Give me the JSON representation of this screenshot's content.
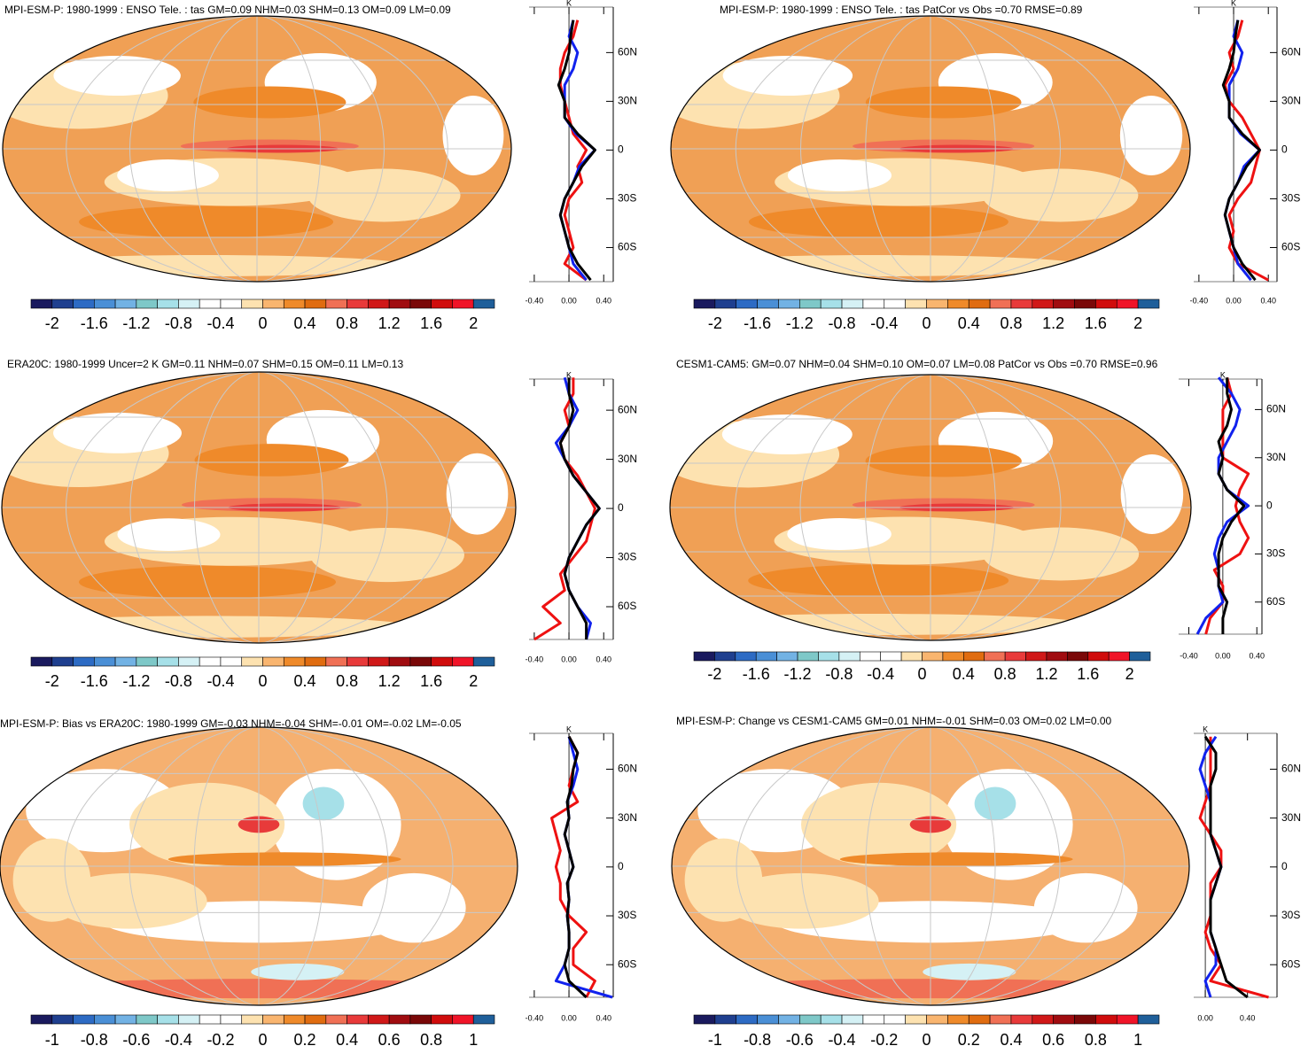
{
  "chart_data": [
    {
      "type": "map",
      "title": "MPI-ESM-P: 1980-1999 : ENSO Tele. : tas GM=0.09 NHM=0.03 SHM=0.13 OM=0.09 LM=0.09",
      "colorbar": {
        "lim": [
          -2.2,
          2.2
        ],
        "ticks": [
          -2,
          -1.6,
          -1.2,
          -0.8,
          -0.4,
          0,
          0.4,
          0.8,
          1.2,
          1.6,
          2
        ],
        "colors": [
          "#1a1a5e",
          "#1f3f8f",
          "#2d6bc4",
          "#4a8fd6",
          "#72b2e4",
          "#7ec8c8",
          "#a6e0e8",
          "#d5f1f5",
          "#ffffff",
          "#ffffff",
          "#fde2b0",
          "#f9b56f",
          "#ef8a2a",
          "#e06c10",
          "#f07055",
          "#e83a3a",
          "#d01818",
          "#a00c10",
          "#7a0808",
          "#d00c0c",
          "#f01428",
          "#1f5f9a"
        ]
      },
      "zonal_mean": {
        "type": "line",
        "x_label": "K",
        "xlim": [
          -0.46,
          0.51
        ],
        "ylim": [
          -81,
          88
        ],
        "xticks": [
          {
            "value": -0.4,
            "label": "-0.40"
          },
          {
            "value": 0,
            "label": "0.00"
          },
          {
            "value": 0.4,
            "label": "0.40"
          }
        ],
        "yticks": [
          {
            "value": 60,
            "label": "60N"
          },
          {
            "value": 30,
            "label": "30N"
          },
          0,
          {
            "value": -30,
            "label": "30S"
          },
          {
            "value": -60,
            "label": "60S"
          }
        ],
        "lat": [
          -80,
          -70,
          -60,
          -50,
          -40,
          -30,
          -20,
          -10,
          0,
          10,
          20,
          30,
          40,
          50,
          60,
          70,
          80
        ],
        "series": [
          {
            "color": "#ee1111",
            "values": [
              0.2,
              -0.05,
              0.05,
              0.0,
              -0.05,
              0.0,
              0.15,
              0.1,
              0.2,
              0.05,
              0.0,
              -0.05,
              -0.1,
              -0.1,
              -0.05,
              0.05,
              0.1
            ]
          },
          {
            "color": "#1122ee",
            "values": [
              0.2,
              0.05,
              0.0,
              -0.05,
              -0.1,
              -0.05,
              0.05,
              0.12,
              0.3,
              0.08,
              -0.05,
              -0.05,
              -0.05,
              0.05,
              0.1,
              0.0,
              0.05
            ]
          },
          {
            "color": "#000000",
            "values": [
              0.25,
              0.1,
              0.0,
              -0.05,
              -0.1,
              -0.05,
              0.05,
              0.15,
              0.3,
              0.1,
              -0.05,
              -0.05,
              -0.12,
              -0.05,
              0.0,
              0.02,
              0.05
            ]
          }
        ]
      }
    },
    {
      "type": "map",
      "title": "MPI-ESM-P: 1980-1999 : ENSO Tele. : tas PatCor vs Obs =0.70 RMSE=0.89",
      "colorbar": {
        "lim": [
          -2.2,
          2.2
        ],
        "ticks": [
          -2,
          -1.6,
          -1.2,
          -0.8,
          -0.4,
          0,
          0.4,
          0.8,
          1.2,
          1.6,
          2
        ],
        "colors": [
          "#1a1a5e",
          "#1f3f8f",
          "#2d6bc4",
          "#4a8fd6",
          "#72b2e4",
          "#7ec8c8",
          "#a6e0e8",
          "#d5f1f5",
          "#ffffff",
          "#ffffff",
          "#fde2b0",
          "#f9b56f",
          "#ef8a2a",
          "#e06c10",
          "#f07055",
          "#e83a3a",
          "#d01818",
          "#a00c10",
          "#7a0808",
          "#d00c0c",
          "#f01428",
          "#1f5f9a"
        ]
      },
      "zonal_mean": {
        "type": "line",
        "x_label": "K",
        "xlim": [
          -0.46,
          0.5
        ],
        "ylim": [
          -81,
          88
        ],
        "xticks": [
          {
            "value": -0.4,
            "label": "-0.40"
          },
          {
            "value": 0,
            "label": "0.00"
          },
          {
            "value": 0.4,
            "label": "0.40"
          }
        ],
        "yticks": [
          {
            "value": 60,
            "label": "60N"
          },
          {
            "value": 30,
            "label": "30N"
          },
          0,
          {
            "value": -30,
            "label": "30S"
          },
          {
            "value": -60,
            "label": "60S"
          }
        ],
        "lat": [
          -80,
          -70,
          -60,
          -50,
          -40,
          -30,
          -20,
          -10,
          0,
          10,
          20,
          30,
          40,
          50,
          60,
          70,
          80
        ],
        "series": [
          {
            "color": "#ee1111",
            "values": [
              0.4,
              0.05,
              -0.05,
              0.0,
              -0.05,
              0.05,
              0.2,
              0.25,
              0.3,
              0.2,
              0.1,
              -0.05,
              -0.1,
              0.0,
              -0.05,
              0.05,
              0.1
            ]
          },
          {
            "color": "#1122ee",
            "values": [
              0.2,
              0.05,
              0.0,
              -0.05,
              -0.1,
              -0.05,
              0.05,
              0.12,
              0.3,
              0.08,
              -0.05,
              -0.05,
              -0.05,
              0.05,
              0.1,
              0.0,
              0.05
            ]
          },
          {
            "color": "#000000",
            "values": [
              0.25,
              0.1,
              0.0,
              -0.05,
              -0.1,
              -0.05,
              0.05,
              0.15,
              0.3,
              0.1,
              -0.05,
              -0.05,
              -0.12,
              -0.05,
              0.0,
              0.02,
              0.05
            ]
          }
        ]
      }
    },
    {
      "type": "map",
      "title": "ERA20C: 1980-1999 Uncer=2 K GM=0.11 NHM=0.07 SHM=0.15 OM=0.11 LM=0.13",
      "colorbar": {
        "lim": [
          -2.2,
          2.2
        ],
        "ticks": [
          -2,
          -1.6,
          -1.2,
          -0.8,
          -0.4,
          0,
          0.4,
          0.8,
          1.2,
          1.6,
          2
        ],
        "colors": [
          "#1a1a5e",
          "#1f3f8f",
          "#2d6bc4",
          "#4a8fd6",
          "#72b2e4",
          "#7ec8c8",
          "#a6e0e8",
          "#d5f1f5",
          "#ffffff",
          "#ffffff",
          "#fde2b0",
          "#f9b56f",
          "#ef8a2a",
          "#e06c10",
          "#f07055",
          "#e83a3a",
          "#d01818",
          "#a00c10",
          "#7a0808",
          "#d00c0c",
          "#f01428",
          "#1f5f9a"
        ]
      },
      "zonal_mean": {
        "type": "line",
        "x_label": "K",
        "xlim": [
          -0.46,
          0.51
        ],
        "ylim": [
          -80,
          79
        ],
        "xticks": [
          {
            "value": -0.4,
            "label": "-0.40"
          },
          {
            "value": 0,
            "label": "0.00"
          },
          {
            "value": 0.4,
            "label": "0.40"
          }
        ],
        "yticks": [
          {
            "value": 60,
            "label": "60N"
          },
          {
            "value": 30,
            "label": "30N"
          },
          0,
          {
            "value": -30,
            "label": "30S"
          },
          {
            "value": -60,
            "label": "60S"
          }
        ],
        "lat": [
          -80,
          -70,
          -60,
          -50,
          -40,
          -30,
          -20,
          -10,
          0,
          10,
          20,
          30,
          40,
          50,
          60,
          70,
          80
        ],
        "series": [
          {
            "color": "#ee1111",
            "values": [
              -0.4,
              -0.1,
              -0.3,
              -0.05,
              -0.1,
              0.05,
              0.2,
              0.25,
              0.3,
              0.2,
              0.1,
              -0.05,
              -0.1,
              0.0,
              -0.05,
              0.05,
              0.05
            ]
          },
          {
            "color": "#1122ee",
            "values": [
              0.2,
              0.25,
              0.1,
              0.0,
              -0.05,
              0.0,
              0.1,
              0.2,
              0.35,
              0.2,
              0.05,
              -0.05,
              -0.15,
              0.0,
              0.1,
              0.0,
              -0.05
            ]
          },
          {
            "color": "#000000",
            "values": [
              0.2,
              0.2,
              0.1,
              0.0,
              -0.05,
              0.0,
              0.1,
              0.2,
              0.35,
              0.2,
              0.05,
              -0.05,
              -0.1,
              0.0,
              0.05,
              0.0,
              0.0
            ]
          }
        ]
      }
    },
    {
      "type": "map",
      "title": "CESM1-CAM5: GM=0.07 NHM=0.04 SHM=0.10 OM=0.07 LM=0.08 PatCor vs Obs =0.70 RMSE=0.96",
      "colorbar": {
        "lim": [
          -2.2,
          2.2
        ],
        "ticks": [
          -2,
          -1.6,
          -1.2,
          -0.8,
          -0.4,
          0,
          0.4,
          0.8,
          1.2,
          1.6,
          2
        ],
        "colors": [
          "#1a1a5e",
          "#1f3f8f",
          "#2d6bc4",
          "#4a8fd6",
          "#72b2e4",
          "#7ec8c8",
          "#a6e0e8",
          "#d5f1f5",
          "#ffffff",
          "#ffffff",
          "#fde2b0",
          "#f9b56f",
          "#ef8a2a",
          "#e06c10",
          "#f07055",
          "#e83a3a",
          "#d01818",
          "#a00c10",
          "#7a0808",
          "#d00c0c",
          "#f01428",
          "#1f5f9a"
        ]
      },
      "zonal_mean": {
        "type": "line",
        "x_label": "K",
        "xlim": [
          -0.52,
          0.46
        ],
        "ylim": [
          -80,
          79
        ],
        "xticks": [
          {
            "value": -0.4,
            "label": "-0.40"
          },
          {
            "value": 0,
            "label": "0.00"
          },
          {
            "value": 0.4,
            "label": "0.40"
          }
        ],
        "yticks": [
          {
            "value": 60,
            "label": "60N"
          },
          {
            "value": 30,
            "label": "30N"
          },
          0,
          {
            "value": -30,
            "label": "30S"
          },
          {
            "value": -60,
            "label": "60S"
          }
        ],
        "lat": [
          -80,
          -70,
          -60,
          -50,
          -40,
          -30,
          -20,
          -10,
          0,
          10,
          20,
          30,
          40,
          50,
          60,
          70,
          80
        ],
        "series": [
          {
            "color": "#ee1111",
            "values": [
              -0.2,
              -0.15,
              0.0,
              0.0,
              -0.1,
              0.2,
              0.3,
              0.2,
              0.15,
              0.2,
              0.3,
              0.0,
              0.0,
              0.0,
              0.0,
              0.1,
              0.05
            ]
          },
          {
            "color": "#1122ee",
            "values": [
              -0.3,
              -0.2,
              0.0,
              -0.05,
              -0.05,
              -0.1,
              -0.05,
              0.05,
              0.3,
              0.05,
              -0.05,
              -0.05,
              0.05,
              0.15,
              0.2,
              0.1,
              -0.05
            ]
          },
          {
            "color": "#000000",
            "values": [
              0.0,
              0.0,
              0.05,
              -0.05,
              -0.05,
              -0.05,
              0.0,
              0.1,
              0.25,
              0.05,
              -0.05,
              0.0,
              -0.05,
              0.05,
              0.1,
              0.05,
              0.05
            ]
          }
        ]
      }
    },
    {
      "type": "map",
      "title": "MPI-ESM-P: Bias vs ERA20C: 1980-1999 GM=-0.03 NHM=-0.04 SHM=-0.01 OM=-0.02 LM=-0.05",
      "colorbar": {
        "lim": [
          -1.1,
          1.1
        ],
        "ticks": [
          -1,
          -0.8,
          -0.6,
          -0.4,
          -0.2,
          0,
          0.2,
          0.4,
          0.6,
          0.8,
          1
        ],
        "colors": [
          "#1a1a5e",
          "#1f3f8f",
          "#2d6bc4",
          "#4a8fd6",
          "#72b2e4",
          "#7ec8c8",
          "#a6e0e8",
          "#d5f1f5",
          "#ffffff",
          "#ffffff",
          "#fde2b0",
          "#f9b56f",
          "#ef8a2a",
          "#e06c10",
          "#f07055",
          "#e83a3a",
          "#d01818",
          "#a00c10",
          "#7a0808",
          "#d00c0c",
          "#f01428",
          "#1f5f9a"
        ]
      },
      "zonal_mean": {
        "type": "line",
        "x_label": "K",
        "xlim": [
          -0.46,
          0.51
        ],
        "ylim": [
          -80,
          82
        ],
        "xticks": [
          {
            "value": -0.4,
            "label": "-0.40"
          },
          {
            "value": 0,
            "label": "0.00"
          },
          {
            "value": 0.4,
            "label": "0.40"
          }
        ],
        "yticks": [
          {
            "value": 60,
            "label": "60N"
          },
          {
            "value": 30,
            "label": "30N"
          },
          0,
          {
            "value": -30,
            "label": "30S"
          },
          {
            "value": -60,
            "label": "60S"
          }
        ],
        "lat": [
          -80,
          -70,
          -60,
          -50,
          -40,
          -30,
          -20,
          -10,
          0,
          10,
          20,
          30,
          40,
          50,
          60,
          70,
          80
        ],
        "series": [
          {
            "color": "#ee1111",
            "values": [
              0.2,
              0.3,
              0.05,
              0.05,
              0.2,
              0.0,
              -0.1,
              -0.1,
              -0.15,
              -0.1,
              -0.15,
              -0.2,
              0.1,
              0.0,
              0.05,
              0.1,
              0.0
            ]
          },
          {
            "color": "#1122ee",
            "values": [
              0.5,
              -0.15,
              -0.05,
              0.0,
              0.0,
              -0.02,
              0.0,
              -0.02,
              0.05,
              0.0,
              -0.05,
              0.0,
              -0.02,
              0.05,
              0.1,
              0.05,
              0.0
            ]
          },
          {
            "color": "#000000",
            "values": [
              0.2,
              0.0,
              -0.05,
              0.0,
              0.0,
              -0.02,
              0.0,
              -0.02,
              0.05,
              0.0,
              -0.05,
              0.0,
              -0.02,
              0.03,
              0.05,
              0.1,
              0.0
            ]
          }
        ]
      }
    },
    {
      "type": "map",
      "title": "MPI-ESM-P: Change vs CESM1-CAM5 GM=0.01 NHM=-0.01 SHM=0.03 OM=0.02 LM=0.00",
      "colorbar": {
        "lim": [
          -1.1,
          1.1
        ],
        "ticks": [
          -1,
          -0.8,
          -0.6,
          -0.4,
          -0.2,
          0,
          0.2,
          0.4,
          0.6,
          0.8,
          1
        ],
        "colors": [
          "#1a1a5e",
          "#1f3f8f",
          "#2d6bc4",
          "#4a8fd6",
          "#72b2e4",
          "#7ec8c8",
          "#a6e0e8",
          "#d5f1f5",
          "#ffffff",
          "#ffffff",
          "#fde2b0",
          "#f9b56f",
          "#ef8a2a",
          "#e06c10",
          "#f07055",
          "#e83a3a",
          "#d01818",
          "#a00c10",
          "#7a0808",
          "#d00c0c",
          "#f01428",
          "#1f5f9a"
        ]
      },
      "zonal_mean": {
        "type": "line",
        "x_label": "K",
        "xlim": [
          -0.11,
          0.68
        ],
        "ylim": [
          -80,
          82
        ],
        "xticks": [
          {
            "value": 0,
            "label": "0.00"
          },
          {
            "value": 0.4,
            "label": "0.40"
          }
        ],
        "yticks": [
          {
            "value": 60,
            "label": "60N"
          },
          {
            "value": 30,
            "label": "30N"
          },
          0,
          {
            "value": -30,
            "label": "30S"
          },
          {
            "value": -60,
            "label": "60S"
          }
        ],
        "lat": [
          -80,
          -70,
          -60,
          -50,
          -40,
          -30,
          -20,
          -10,
          0,
          10,
          20,
          30,
          40,
          50,
          60,
          70,
          80
        ],
        "series": [
          {
            "color": "#ee1111",
            "values": [
              0.6,
              0.05,
              0.15,
              0.05,
              0.0,
              0.05,
              0.05,
              0.05,
              0.15,
              0.15,
              0.05,
              -0.05,
              0.0,
              0.05,
              0.05,
              0.05,
              0.05
            ]
          },
          {
            "color": "#1122ee",
            "values": [
              0.05,
              0.0,
              0.1,
              0.1,
              0.05,
              0.05,
              0.05,
              0.1,
              0.15,
              0.1,
              0.05,
              0.05,
              0.05,
              0.0,
              -0.05,
              0.0,
              0.1
            ]
          },
          {
            "color": "#000000",
            "values": [
              0.4,
              0.2,
              0.15,
              0.1,
              0.05,
              0.05,
              0.05,
              0.1,
              0.15,
              0.1,
              0.05,
              0.05,
              0.05,
              0.05,
              0.1,
              0.1,
              0.0
            ]
          }
        ]
      }
    }
  ]
}
